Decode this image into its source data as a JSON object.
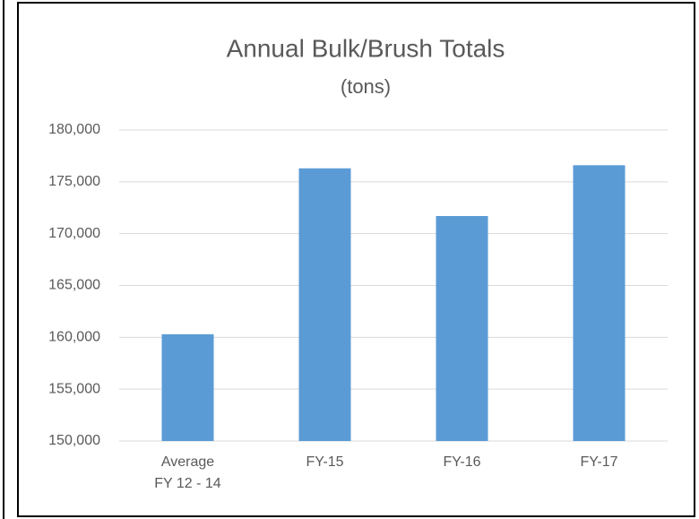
{
  "chart_data": {
    "type": "bar",
    "title": "Annual Bulk/Brush Totals",
    "subtitle": "(tons)",
    "categories": [
      "Average\nFY 12 - 14",
      "FY-15",
      "FY-16",
      "FY-17"
    ],
    "values": [
      160300,
      176300,
      171700,
      176600
    ],
    "color": "#5b9bd5",
    "ylim": [
      150000,
      180000
    ],
    "yticks": [
      {
        "value": 150000,
        "label": "150,000"
      },
      {
        "value": 155000,
        "label": "155,000"
      },
      {
        "value": 160000,
        "label": "160,000"
      },
      {
        "value": 165000,
        "label": "165,000"
      },
      {
        "value": 170000,
        "label": "170,000"
      },
      {
        "value": 175000,
        "label": "175,000"
      },
      {
        "value": 180000,
        "label": "180,000"
      }
    ],
    "grid": true
  }
}
